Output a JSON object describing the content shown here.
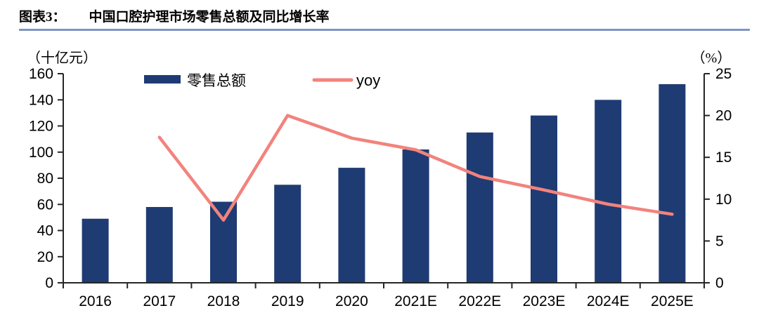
{
  "header": {
    "label": "图表3：",
    "title": "中国口腔护理市场零售总额及同比增长率"
  },
  "colors": {
    "bar": "#1f3b73",
    "line": "#f2837c",
    "underline": "#7e95c3",
    "axis": "#262626",
    "text": "#000000"
  },
  "chart_data": {
    "type": "bar",
    "subtype": "bar+line combo with dual y-axes",
    "title": "中国口腔护理市场零售总额及同比增长率",
    "categories": [
      "2016",
      "2017",
      "2018",
      "2019",
      "2020",
      "2021E",
      "2022E",
      "2023E",
      "2024E",
      "2025E"
    ],
    "series": [
      {
        "name": "零售总额",
        "type": "bar",
        "axis": "left",
        "unit": "十亿元",
        "values": [
          49,
          58,
          62,
          75,
          88,
          102,
          115,
          128,
          140,
          152
        ]
      },
      {
        "name": "yoy",
        "type": "line",
        "axis": "right",
        "unit": "%",
        "values": [
          null,
          17.4,
          7.5,
          20,
          17.3,
          15.9,
          12.7,
          11.1,
          9.4,
          8.2
        ]
      }
    ],
    "left_axis": {
      "label": "（十亿元）",
      "min": 0,
      "max": 160,
      "step": 20
    },
    "right_axis": {
      "label": "（%）",
      "min": 0,
      "max": 25,
      "step": 5
    },
    "legend": [
      "零售总额",
      "yoy"
    ],
    "legend_position": "top",
    "grid": false
  }
}
